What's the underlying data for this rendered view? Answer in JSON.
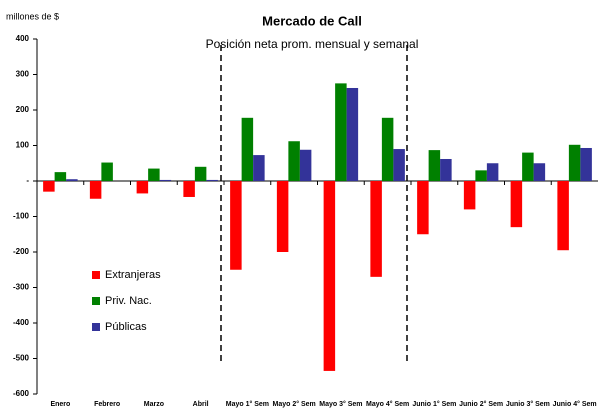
{
  "chart_data": {
    "type": "bar",
    "title": "Mercado de Call",
    "subtitle": "Posición neta prom. mensual y semanal",
    "y_label": "millones de $",
    "categories": [
      "Enero",
      "Febrero",
      "Marzo",
      "Abril",
      "Mayo 1° Sem",
      "Mayo 2° Sem",
      "Mayo 3° Sem",
      "Mayo 4° Sem",
      "Junio 1° Sem",
      "Junio 2° Sem",
      "Junio 3° Sem",
      "Junio 4° Sem"
    ],
    "series": [
      {
        "name": "Extranjeras",
        "color": "#ff0000",
        "values": [
          -30,
          -50,
          -35,
          -45,
          -250,
          -200,
          -535,
          -270,
          -150,
          -80,
          -130,
          -195
        ]
      },
      {
        "name": "Priv. Nac.",
        "color": "#008000",
        "values": [
          25,
          52,
          35,
          40,
          178,
          112,
          275,
          178,
          87,
          30,
          80,
          102
        ]
      },
      {
        "name": "Públicas",
        "color": "#333399",
        "values": [
          5,
          0,
          3,
          3,
          73,
          88,
          262,
          90,
          62,
          50,
          50,
          93
        ]
      }
    ],
    "ylim": [
      -600,
      400
    ],
    "yticks": [
      -600,
      -500,
      -400,
      -300,
      -200,
      -100,
      {
        "value": 0,
        "label": "-"
      },
      100,
      200,
      300,
      400
    ],
    "legend": "lower left"
  }
}
